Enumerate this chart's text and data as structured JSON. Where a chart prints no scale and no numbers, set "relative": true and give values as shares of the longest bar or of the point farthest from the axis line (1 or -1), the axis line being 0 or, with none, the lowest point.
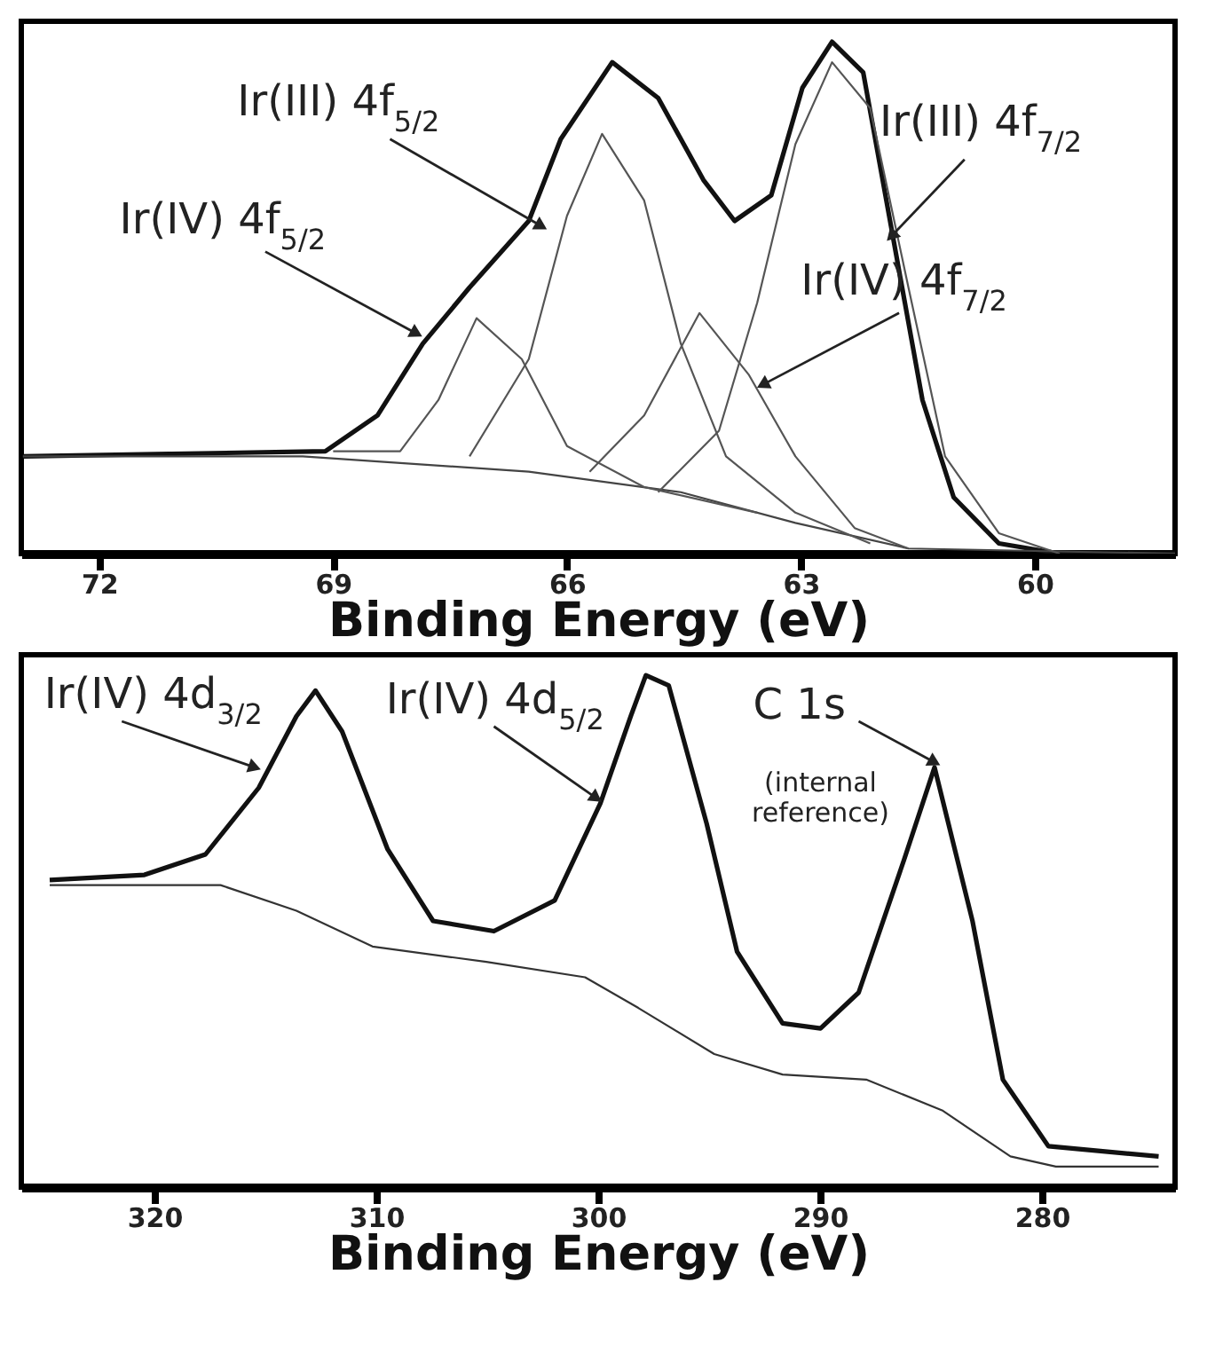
{
  "chart_data": [
    {
      "type": "line",
      "relative": true,
      "xlim": [
        73,
        58.2
      ],
      "xticks": [
        72,
        69,
        66,
        63,
        60
      ],
      "xlabel": "Binding Energy (eV)",
      "tick_labels": "x",
      "series": [
        {
          "color": "#111111",
          "x": [
            72.98,
            69.1,
            68.43,
            67.85,
            67.25,
            66.49,
            66.08,
            65.42,
            64.83,
            64.25,
            63.85,
            63.38,
            62.98,
            62.6,
            62.2,
            61.82,
            61.44,
            61.04,
            60.46,
            59.68,
            58.2
          ],
          "values": [
            0.19,
            0.2,
            0.27,
            0.41,
            0.52,
            0.65,
            0.81,
            0.96,
            0.89,
            0.73,
            0.65,
            0.7,
            0.91,
            1.0,
            0.94,
            0.62,
            0.3,
            0.11,
            0.02,
            0.0,
            0.0
          ]
        },
        {
          "color": "#444444",
          "x": [
            72.98,
            69.39,
            66.49,
            64.54,
            63.07,
            61.62,
            58.2
          ],
          "values": [
            0.19,
            0.19,
            0.16,
            0.12,
            0.06,
            0.01,
            0.0
          ]
        },
        {
          "color": "#555555",
          "x": [
            69.0,
            68.14,
            67.65,
            67.16,
            66.58,
            66.0,
            65.01,
            63.56
          ],
          "values": [
            0.2,
            0.2,
            0.3,
            0.46,
            0.38,
            0.21,
            0.13,
            0.08
          ]
        },
        {
          "color": "#555555",
          "x": [
            67.25,
            66.49,
            66.0,
            65.55,
            65.01,
            64.54,
            63.96,
            63.07,
            62.11
          ],
          "values": [
            0.19,
            0.38,
            0.66,
            0.82,
            0.69,
            0.41,
            0.19,
            0.08,
            0.02
          ]
        },
        {
          "color": "#555555",
          "x": [
            65.71,
            65.01,
            64.3,
            63.67,
            63.07,
            62.31,
            61.62
          ],
          "values": [
            0.16,
            0.27,
            0.47,
            0.35,
            0.19,
            0.05,
            0.01
          ]
        },
        {
          "color": "#555555",
          "x": [
            64.83,
            64.05,
            63.56,
            63.07,
            62.6,
            62.11,
            61.62,
            61.15,
            60.46,
            59.68
          ],
          "values": [
            0.12,
            0.24,
            0.49,
            0.8,
            0.96,
            0.87,
            0.52,
            0.19,
            0.04,
            0.0
          ]
        }
      ],
      "annotations": [
        {
          "text": "Ir(III) 4f$_{5/2}$",
          "x": 66.33,
          "y": 0.64
        },
        {
          "text": "Ir(IV) 4f$_{5/2}$",
          "x": 67.93,
          "y": 0.43
        },
        {
          "text": "Ir(III) 4f$_{7/2}$",
          "x": 61.84,
          "y": 0.62
        },
        {
          "text": "Ir(IV) 4f$_{7/2}$",
          "x": 63.49,
          "y": 0.33
        }
      ]
    },
    {
      "type": "line",
      "relative": true,
      "xlim": [
        326,
        274
      ],
      "xticks": [
        320,
        310,
        300,
        290,
        280
      ],
      "xlabel": "Binding Energy (eV)",
      "tick_labels": "x",
      "series": [
        {
          "color": "#111111",
          "x": [
            324.72,
            320.45,
            317.7,
            315.3,
            313.6,
            312.74,
            311.54,
            309.49,
            307.44,
            304.7,
            301.96,
            299.9,
            298.53,
            297.85,
            296.82,
            295.11,
            293.74,
            291.69,
            289.98,
            288.26,
            286.21,
            284.84,
            283.13,
            281.76,
            279.71,
            274.74
          ],
          "values": [
            0.6,
            0.61,
            0.65,
            0.78,
            0.92,
            0.97,
            0.89,
            0.66,
            0.52,
            0.5,
            0.56,
            0.75,
            0.92,
            1.0,
            0.98,
            0.71,
            0.46,
            0.32,
            0.31,
            0.38,
            0.64,
            0.82,
            0.52,
            0.21,
            0.08,
            0.06
          ]
        },
        {
          "color": "#333333",
          "x": [
            324.72,
            317.02,
            313.6,
            310.17,
            305.04,
            300.59,
            298.19,
            294.77,
            291.69,
            287.92,
            284.5,
            281.42,
            279.37,
            274.74
          ],
          "values": [
            0.59,
            0.59,
            0.54,
            0.47,
            0.44,
            0.41,
            0.35,
            0.26,
            0.22,
            0.21,
            0.15,
            0.06,
            0.04,
            0.04
          ]
        }
      ],
      "annotations": [
        {
          "text": "Ir(IV) 4d$_{3/2}$",
          "x": 315.48,
          "y": 0.82
        },
        {
          "text": "Ir(IV) 4d$_{5/2}$",
          "x": 300.08,
          "y": 0.76
        },
        {
          "text": "C 1s",
          "x": 284.84,
          "y": 0.83
        },
        {
          "text": "(internal reference)",
          "x": 284.84,
          "y": 0.83
        }
      ]
    }
  ]
}
